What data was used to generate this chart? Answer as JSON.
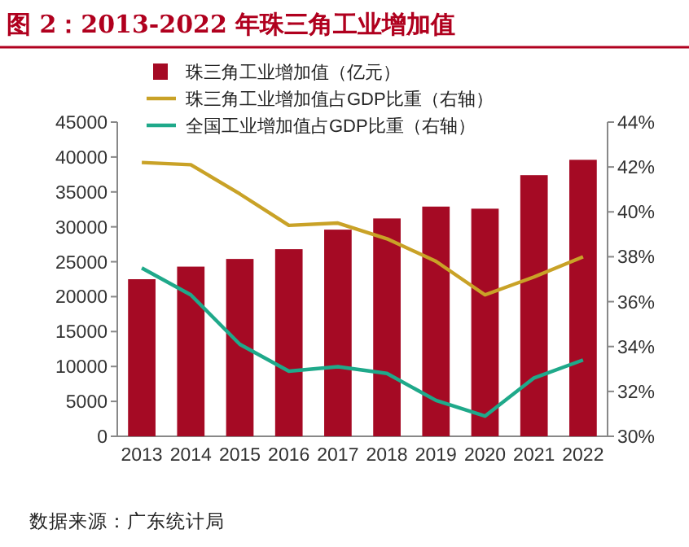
{
  "chart_data": {
    "type": "bar",
    "title": "图 2：2013-2022 年珠三角工业增加值",
    "categories": [
      "2013",
      "2014",
      "2015",
      "2016",
      "2017",
      "2018",
      "2019",
      "2020",
      "2021",
      "2022"
    ],
    "series": [
      {
        "name": "珠三角工业增加值（亿元）",
        "color": "#a50a24",
        "values": [
          22500,
          24300,
          25400,
          26800,
          29600,
          31200,
          32900,
          32600,
          37400,
          39600
        ]
      },
      {
        "name": "珠三角工业增加值占GDP比重（右轴）",
        "type": "line",
        "axis": "y2",
        "color": "#c9a227",
        "values": [
          42.2,
          42.1,
          40.8,
          39.4,
          39.5,
          38.8,
          37.8,
          36.3,
          37.1,
          38.0
        ]
      },
      {
        "name": "全国工业增加值占GDP比重（右轴）",
        "type": "line",
        "axis": "y2",
        "color": "#1fa98a",
        "values": [
          37.5,
          36.3,
          34.1,
          32.9,
          33.1,
          32.8,
          31.6,
          30.9,
          32.6,
          33.4
        ]
      }
    ],
    "ylim": [
      0,
      45000
    ],
    "yticks": [
      0,
      5000,
      10000,
      15000,
      20000,
      25000,
      30000,
      35000,
      40000,
      45000
    ],
    "y2lim": [
      30,
      44
    ],
    "y2ticks": [
      {
        "value": 30,
        "label": "30%"
      },
      {
        "value": 32,
        "label": "32%"
      },
      {
        "value": 34,
        "label": "34%"
      },
      {
        "value": 36,
        "label": "36%"
      },
      {
        "value": 38,
        "label": "38%"
      },
      {
        "value": 40,
        "label": "40%"
      },
      {
        "value": 42,
        "label": "42%"
      },
      {
        "value": 44,
        "label": "44%"
      }
    ],
    "legend": "top",
    "grid": false,
    "annotations": [
      "数据来源：广东统计局"
    ]
  }
}
